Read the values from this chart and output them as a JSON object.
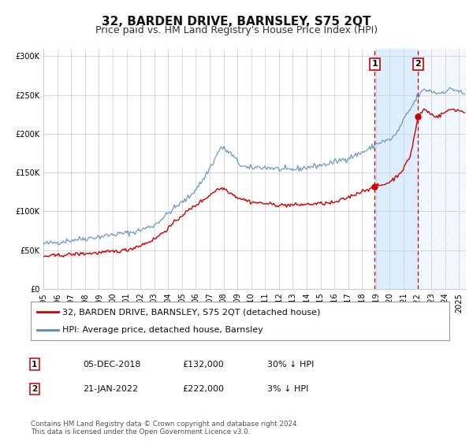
{
  "title": "32, BARDEN DRIVE, BARNSLEY, S75 2QT",
  "subtitle": "Price paid vs. HM Land Registry's House Price Index (HPI)",
  "ylim": [
    0,
    310000
  ],
  "xlim_start": 1995.0,
  "xlim_end": 2025.5,
  "yticks": [
    0,
    50000,
    100000,
    150000,
    200000,
    250000,
    300000
  ],
  "ytick_labels": [
    "£0",
    "£50K",
    "£100K",
    "£150K",
    "£200K",
    "£250K",
    "£300K"
  ],
  "xticks": [
    1995,
    1996,
    1997,
    1998,
    1999,
    2000,
    2001,
    2002,
    2003,
    2004,
    2005,
    2006,
    2007,
    2008,
    2009,
    2010,
    2011,
    2012,
    2013,
    2014,
    2015,
    2016,
    2017,
    2018,
    2019,
    2020,
    2021,
    2022,
    2023,
    2024,
    2025
  ],
  "sale1_x": 2018.92,
  "sale1_y": 132000,
  "sale1_label": "1",
  "sale1_date": "05-DEC-2018",
  "sale1_price": "£132,000",
  "sale1_hpi": "30% ↓ HPI",
  "sale2_x": 2022.05,
  "sale2_y": 222000,
  "sale2_label": "2",
  "sale2_date": "21-JAN-2022",
  "sale2_price": "£222,000",
  "sale2_hpi": "3% ↓ HPI",
  "line1_color": "#cc0000",
  "line2_color": "#5588bb",
  "shade_color": "#ddeeff",
  "vline_color": "#cc0000",
  "grid_color": "#cccccc",
  "background_color": "#ffffff",
  "legend1_label": "32, BARDEN DRIVE, BARNSLEY, S75 2QT (detached house)",
  "legend2_label": "HPI: Average price, detached house, Barnsley",
  "footnote": "Contains HM Land Registry data © Crown copyright and database right 2024.\nThis data is licensed under the Open Government Licence v3.0.",
  "title_fontsize": 11,
  "subtitle_fontsize": 9,
  "tick_fontsize": 7,
  "legend_fontsize": 8,
  "info_fontsize": 8
}
